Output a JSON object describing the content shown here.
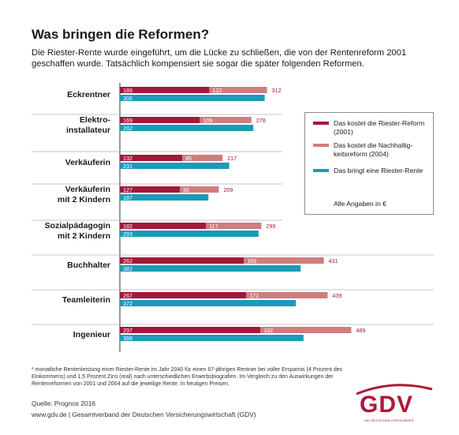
{
  "title": "Was bringen die Reformen?",
  "subtitle": "Die Riester-Rente wurde eingeführt, um die Lücke zu schließen, die von der Rentenreform 2001 geschaffen wurde. Tatsächlich kompensiert sie sogar die später folgenden Reformen.",
  "legend": {
    "riester_cost": "Das kostet die Riester-Reform (2001)",
    "nachhaltigkeit_cost": "Das kostet die Nachhaltig-keitsreform (2004)",
    "riester_benefit": "Das bringt eine Riester-Rente",
    "note": "Alle Angaben in €"
  },
  "footnote": "* monatliche Rentenleistung einer Riester-Rente im Jahr 2040 für einen 67-jährigen Rentner bei voller Ersparnis (4 Prozent des Einkommens) und 1,5 Prozent Zins (real) nach unterschiedlichen Erwerbsbiografien. Im Vergleich zu den Auswirkungen der Rentenreformen von 2001 und 2004 auf die jeweilige Rente. In heutigen Preisen.",
  "source": "Quelle: Prognos 2016",
  "website": "www.gdv.de | Gesamtverband der Deutschen Versicherungswirtschaft (GDV)",
  "logo": {
    "text": "GDV",
    "tagline": "DIE DEUTSCHEN VERSICHERER"
  },
  "colors": {
    "riester_cost": "#a3173b",
    "nachhaltigkeit_cost": "#cf7d7d",
    "riester_benefit": "#1a9bb6",
    "axis": "#333333"
  },
  "chart_data": {
    "type": "bar",
    "orientation": "horizontal",
    "stacked_first_two_series": true,
    "categories": [
      [
        "Eckrentner"
      ],
      [
        "Elektro-",
        "installateur"
      ],
      [
        "Verkäuferin"
      ],
      [
        "Verkäuferin",
        "mit 2 Kindern"
      ],
      [
        "Sozialpädagogin",
        "mit 2 Kindern"
      ],
      [
        "Buchhalter"
      ],
      [
        "Teamleiterin"
      ],
      [
        "Ingenieur"
      ]
    ],
    "series": [
      {
        "name": "Das kostet die Riester-Reform (2001)",
        "values": [
          189,
          169,
          132,
          127,
          182,
          262,
          267,
          297
        ]
      },
      {
        "name": "Das kostet die Nachhaltigkeitsreform (2004)",
        "values": [
          122,
          109,
          85,
          82,
          117,
          169,
          172,
          192
        ]
      },
      {
        "name": "Das bringt eine Riester-Rente",
        "values": [
          306,
          282,
          231,
          187,
          293,
          382,
          372,
          388
        ]
      }
    ],
    "totals": [
      312,
      278,
      217,
      209,
      299,
      431,
      439,
      489
    ]
  }
}
